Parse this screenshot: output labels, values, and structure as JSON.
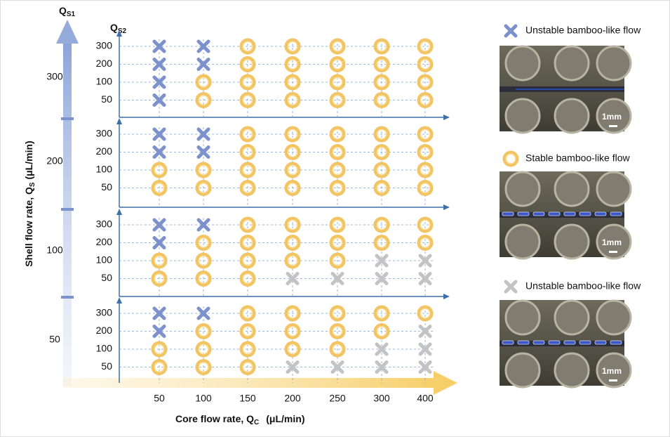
{
  "y_axis_label": {
    "main": "Shell flow rate, Q",
    "sub": "S",
    "unit": " (μL/min)"
  },
  "qs1_label": {
    "main": "Q",
    "sub": "S1"
  },
  "qs2_label": {
    "main": "Q",
    "sub": "S2"
  },
  "x_axis_label": {
    "main": "Core flow rate, Q",
    "sub": "C",
    "unit": "(μL/min)"
  },
  "core_rates": [
    "50",
    "100",
    "150",
    "200",
    "250",
    "300",
    "400"
  ],
  "groups": [
    {
      "qs1": "300",
      "qs2": [
        "300",
        "200",
        "100",
        "50"
      ],
      "states": [
        [
          "U",
          "U",
          "S",
          "S",
          "S",
          "S",
          "S"
        ],
        [
          "U",
          "U",
          "S",
          "S",
          "S",
          "S",
          "S"
        ],
        [
          "U",
          "S",
          "S",
          "S",
          "S",
          "S",
          "S"
        ],
        [
          "U",
          "S",
          "S",
          "S",
          "S",
          "S",
          "S"
        ]
      ]
    },
    {
      "qs1": "200",
      "qs2": [
        "300",
        "200",
        "100",
        "50"
      ],
      "states": [
        [
          "U",
          "U",
          "S",
          "S",
          "S",
          "S",
          "S"
        ],
        [
          "U",
          "U",
          "S",
          "S",
          "S",
          "S",
          "S"
        ],
        [
          "S",
          "S",
          "S",
          "S",
          "S",
          "S",
          "S"
        ],
        [
          "S",
          "S",
          "S",
          "S",
          "S",
          "S",
          "S"
        ]
      ]
    },
    {
      "qs1": "100",
      "qs2": [
        "300",
        "200",
        "100",
        "50"
      ],
      "states": [
        [
          "U",
          "U",
          "S",
          "S",
          "S",
          "S",
          "S"
        ],
        [
          "U",
          "S",
          "S",
          "S",
          "S",
          "S",
          "S"
        ],
        [
          "S",
          "S",
          "S",
          "S",
          "S",
          "G",
          "G"
        ],
        [
          "S",
          "S",
          "S",
          "G",
          "G",
          "G",
          "G"
        ]
      ]
    },
    {
      "qs1": "50",
      "qs2": [
        "300",
        "200",
        "100",
        "50"
      ],
      "states": [
        [
          "U",
          "U",
          "S",
          "S",
          "S",
          "S",
          "S"
        ],
        [
          "U",
          "S",
          "S",
          "S",
          "S",
          "S",
          "G"
        ],
        [
          "S",
          "S",
          "S",
          "S",
          "S",
          "G",
          "G"
        ],
        [
          "S",
          "S",
          "S",
          "G",
          "G",
          "G",
          "G"
        ]
      ]
    }
  ],
  "legend": [
    {
      "state": "U",
      "label": "Unstable bamboo-like flow"
    },
    {
      "state": "S",
      "label": "Stable bamboo-like flow"
    },
    {
      "state": "G",
      "label": "Unstable bamboo-like flow"
    }
  ],
  "scale_bar": "1mm"
}
